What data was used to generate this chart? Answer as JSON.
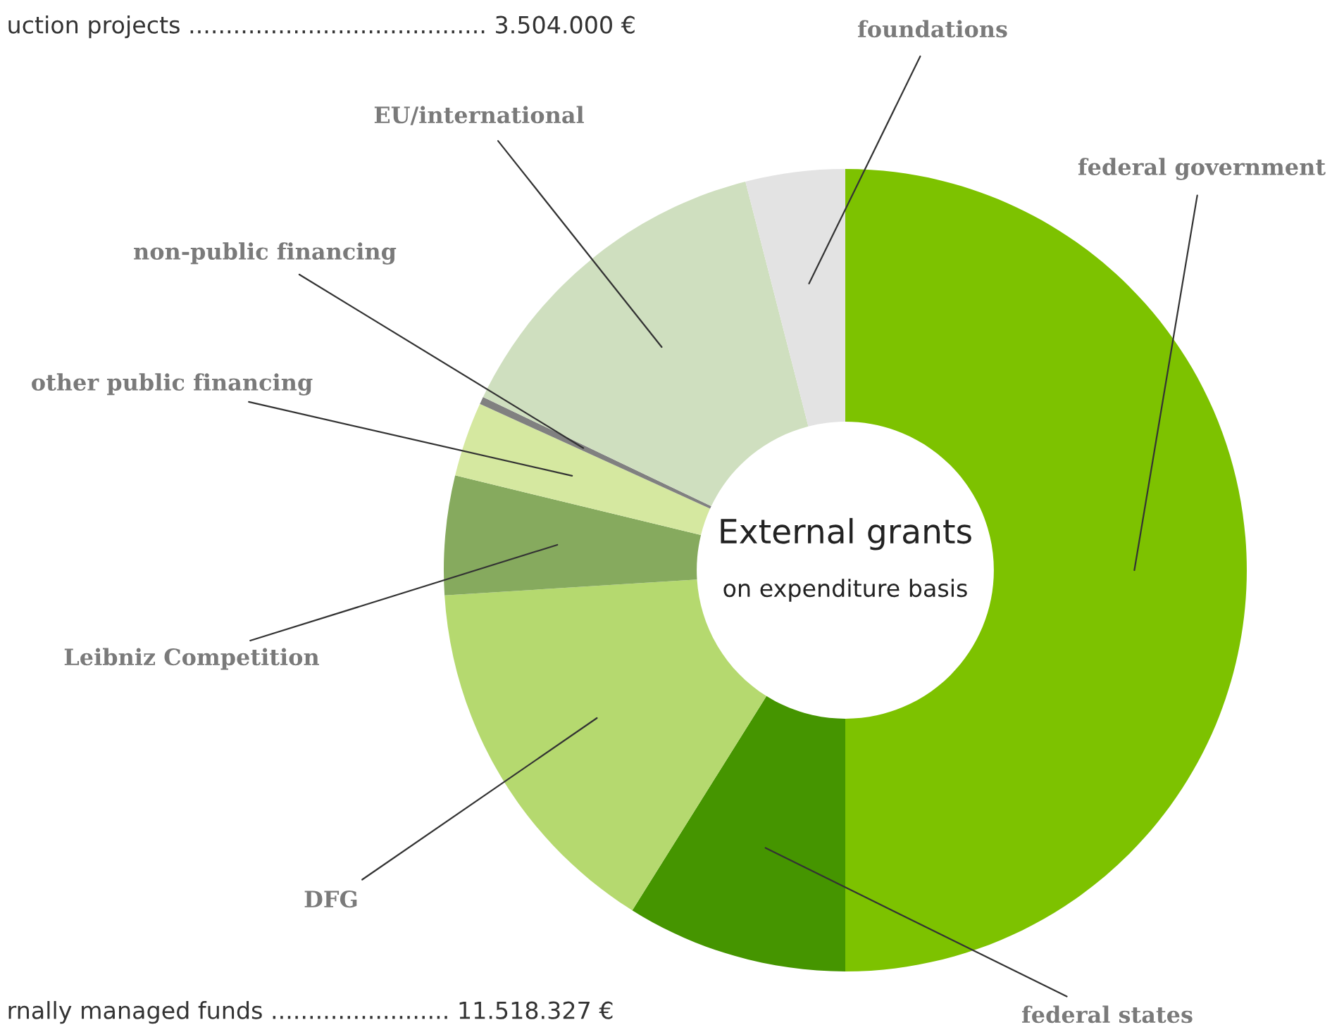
{
  "chart_data": {
    "type": "donut",
    "title": "External grants",
    "subtitle": "on expenditure basis",
    "categories": [
      "federal government",
      "federal states",
      "DFG",
      "Leibniz Competition",
      "other public financing",
      "non-public financing",
      "EU/international",
      "foundations"
    ],
    "values": [
      50,
      8.9,
      15.1,
      4.8,
      3.0,
      0.3,
      13.9,
      4.0
    ],
    "colors": [
      "#7dc200",
      "#459500",
      "#b5d96f",
      "#86aa5e",
      "#d5e8a0",
      "#808080",
      "#cfdfbf",
      "#e3e3e3"
    ],
    "annotations": [
      "uction projects ........................................ 3.504.000 €",
      "rnally managed funds ........................ 11.518.327 €"
    ]
  }
}
